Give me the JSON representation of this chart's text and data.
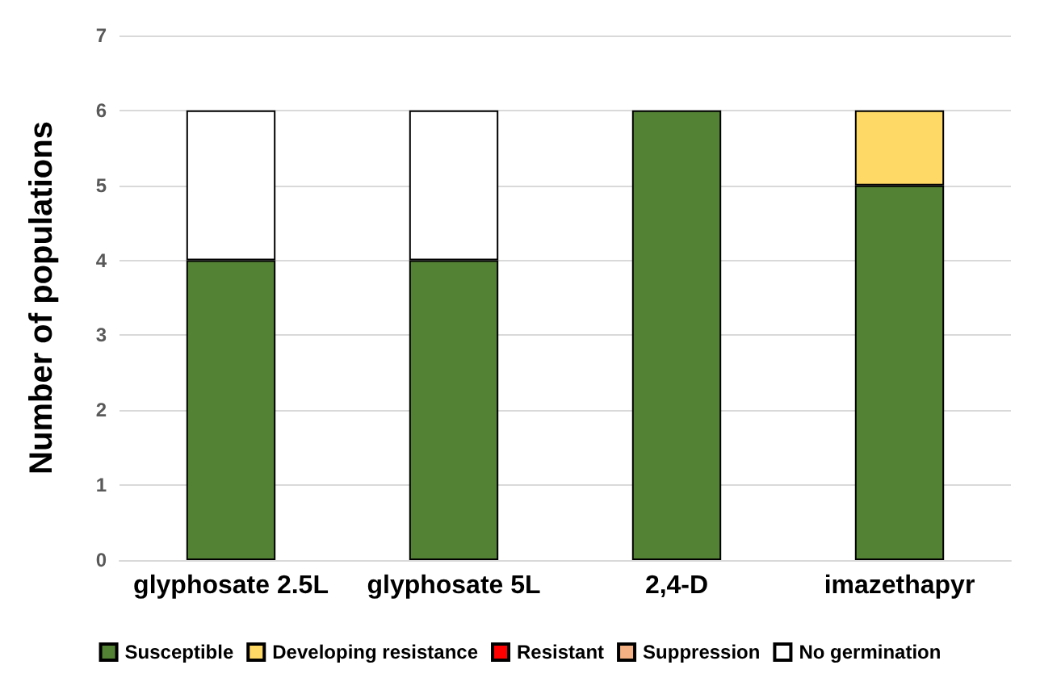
{
  "chart_data": {
    "type": "bar",
    "stacked": true,
    "ylabel": "Number of populations",
    "categories": [
      "glyphosate 2.5L",
      "glyphosate 5L",
      "2,4-D",
      "imazethapyr"
    ],
    "series": [
      {
        "name": "Susceptible",
        "color": "#548235",
        "values": [
          4,
          4,
          6,
          5
        ]
      },
      {
        "name": "Developing resistance",
        "color": "#ffd966",
        "values": [
          0,
          0,
          0,
          1
        ]
      },
      {
        "name": "Resistant",
        "color": "#ff0000",
        "values": [
          0,
          0,
          0,
          0
        ]
      },
      {
        "name": "Suppression",
        "color": "#f4b183",
        "values": [
          0,
          0,
          0,
          0
        ]
      },
      {
        "name": "No germination",
        "color": "#ffffff",
        "values": [
          2,
          2,
          0,
          0
        ]
      }
    ],
    "ylim": [
      0,
      7
    ],
    "yticks": [
      0,
      1,
      2,
      3,
      4,
      5,
      6,
      7
    ],
    "grid": "y",
    "legend": "bottom"
  }
}
